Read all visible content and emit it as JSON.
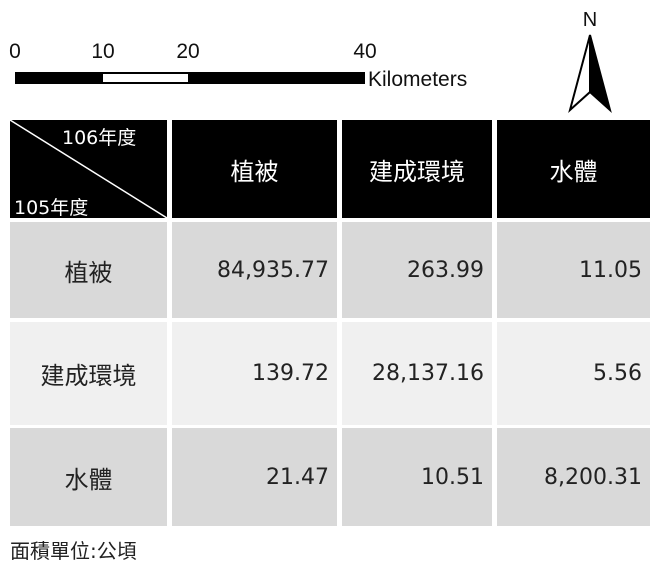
{
  "scale_bar": {
    "labels": [
      "0",
      "10",
      "20",
      "40"
    ],
    "unit": "Kilometers"
  },
  "north": "N",
  "table": {
    "corner": {
      "top": "106年度",
      "bottom": "105年度"
    },
    "columns": [
      "植被",
      "建成環境",
      "水體"
    ],
    "rows": [
      {
        "label": "植被",
        "cells": [
          "84,935.77",
          "263.99",
          "11.05"
        ]
      },
      {
        "label": "建成環境",
        "cells": [
          "139.72",
          "28,137.16",
          "5.56"
        ]
      },
      {
        "label": "水體",
        "cells": [
          "21.47",
          "10.51",
          "8,200.31"
        ]
      }
    ]
  },
  "footnote": "面積單位:公頃"
}
